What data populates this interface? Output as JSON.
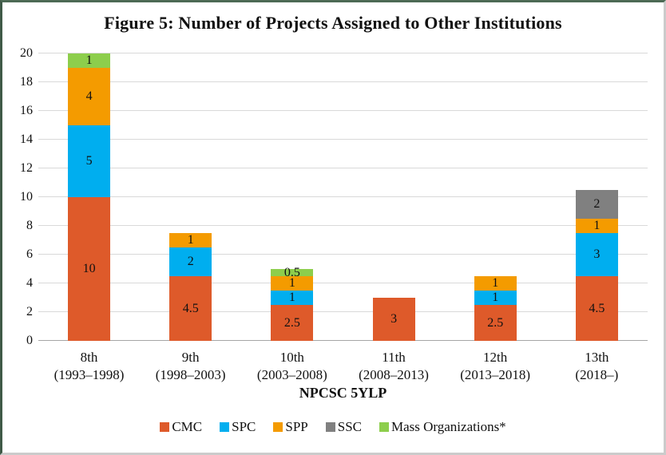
{
  "chart_data": {
    "type": "bar",
    "stacked": true,
    "title": "Figure 5: Number of Projects Assigned to Other Institutions",
    "xlabel": "NPCSC 5YLP",
    "ylabel": "",
    "ylim": [
      0,
      20
    ],
    "yticks": [
      0,
      2,
      4,
      6,
      8,
      10,
      12,
      14,
      16,
      18,
      20
    ],
    "grid": true,
    "data_labels": true,
    "legend_position": "bottom",
    "categories": [
      {
        "label": "8th",
        "sublabel": "(1993–1998)"
      },
      {
        "label": "9th",
        "sublabel": "(1998–2003)"
      },
      {
        "label": "10th",
        "sublabel": "(2003–2008)"
      },
      {
        "label": "11th",
        "sublabel": "(2008–2013)"
      },
      {
        "label": "12th",
        "sublabel": "(2013–2018)"
      },
      {
        "label": "13th",
        "sublabel": "(2018–)"
      }
    ],
    "series": [
      {
        "name": "CMC",
        "color": "#DE5A2A",
        "values": [
          10,
          4.5,
          2.5,
          3,
          2.5,
          4.5
        ]
      },
      {
        "name": "SPC",
        "color": "#00AEEF",
        "values": [
          5,
          2,
          1,
          0,
          1,
          3
        ]
      },
      {
        "name": "SPP",
        "color": "#F49B00",
        "values": [
          4,
          1,
          1,
          0,
          1,
          1
        ]
      },
      {
        "name": "SSC",
        "color": "#808080",
        "values": [
          0,
          0,
          0,
          0,
          0,
          2
        ]
      },
      {
        "name": "Mass Organizations*",
        "color": "#8DCE4C",
        "values": [
          1,
          0,
          0.5,
          0,
          0,
          0
        ]
      }
    ],
    "colors": {
      "grid": "#D9D9D9",
      "baseline": "#A6A6A6",
      "text": "#111111"
    }
  }
}
